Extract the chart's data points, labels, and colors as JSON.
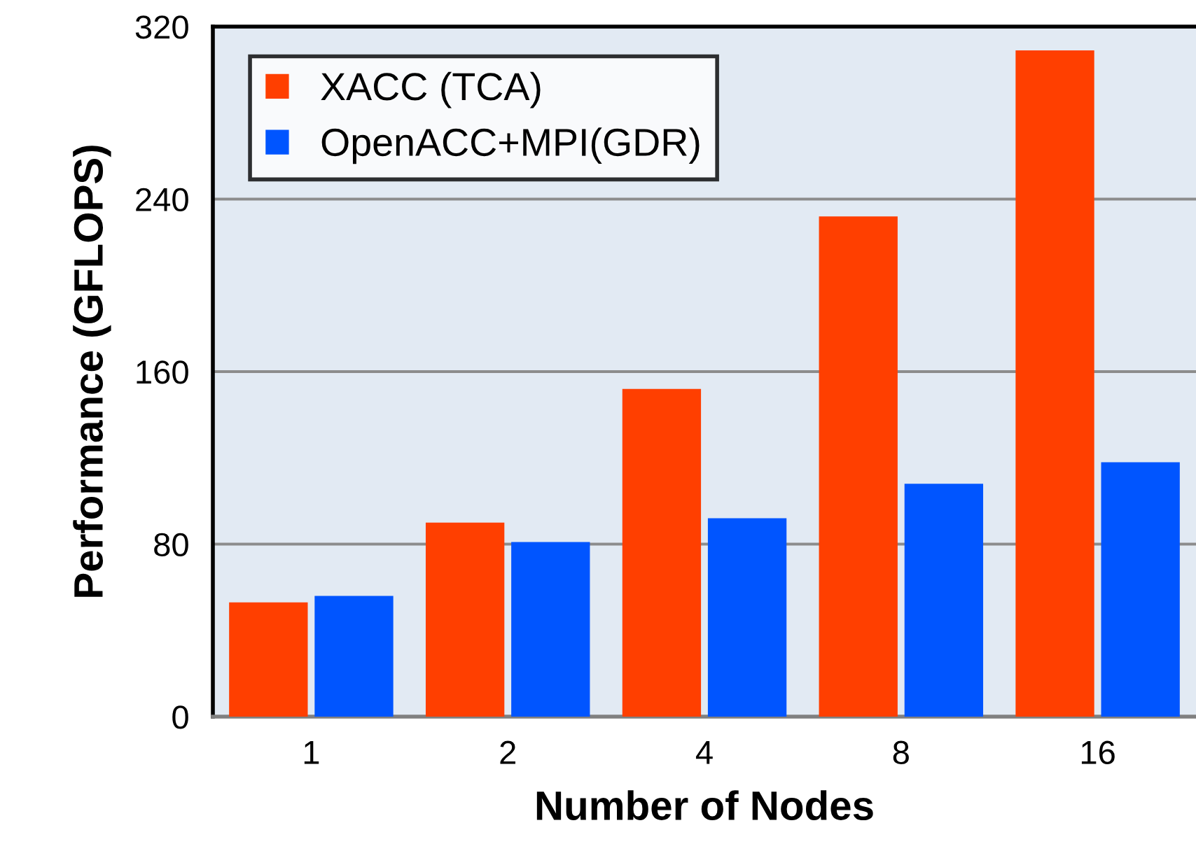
{
  "chart_data": {
    "type": "bar",
    "xlabel": "Number of Nodes",
    "ylabel": "Performance (GFLOPS)",
    "categories": [
      "1",
      "2",
      "4",
      "8",
      "16"
    ],
    "series": [
      {
        "name": "XACC (TCA)",
        "color": "#ff3f00",
        "values": [
          53,
          90,
          152,
          232,
          309
        ]
      },
      {
        "name": "OpenACC+MPI(GDR)",
        "color": "#0055ff",
        "values": [
          56,
          81,
          92,
          108,
          118
        ]
      }
    ],
    "ylim": [
      0,
      320
    ],
    "yticks": [
      0,
      80,
      160,
      240,
      320
    ],
    "grid": "y",
    "legend": "top left"
  }
}
